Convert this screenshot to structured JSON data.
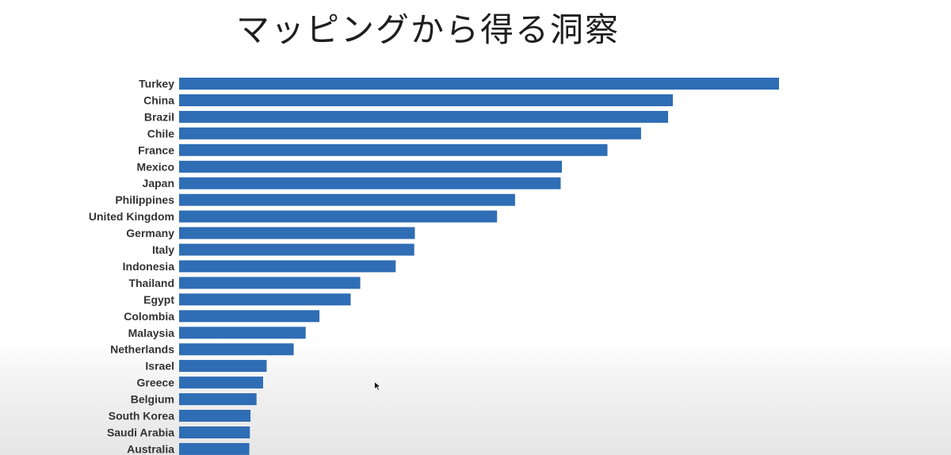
{
  "title": "マッピングから得る洞察",
  "chart_data": {
    "type": "bar",
    "orientation": "horizontal",
    "categories": [
      "Turkey",
      "China",
      "Brazil",
      "Chile",
      "France",
      "Mexico",
      "Japan",
      "Philippines",
      "United Kingdom",
      "Germany",
      "Italy",
      "Indonesia",
      "Thailand",
      "Egypt",
      "Colombia",
      "Malaysia",
      "Netherlands",
      "Israel",
      "Greece",
      "Belgium",
      "South Korea",
      "Saudi Arabia",
      "Australia"
    ],
    "values": [
      100,
      82.3,
      81.5,
      77.0,
      71.4,
      63.8,
      63.6,
      56.0,
      53.0,
      39.3,
      39.2,
      36.1,
      30.2,
      28.6,
      23.4,
      21.1,
      19.1,
      14.6,
      14.0,
      12.9,
      11.9,
      11.8,
      11.7
    ],
    "bar_color": "#2f6db5",
    "grid": false
  }
}
